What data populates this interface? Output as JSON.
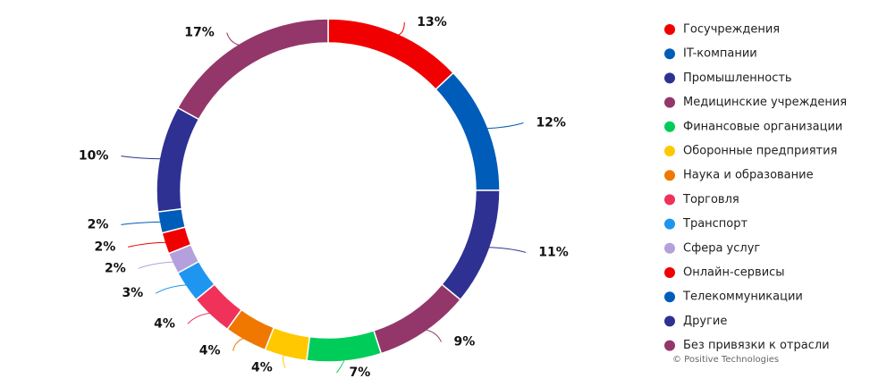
{
  "chart_data": {
    "type": "pie",
    "categories": [
      "Госучреждения",
      "IT-компании",
      "Промышленность",
      "Медицинские учреждения",
      "Финансовые организации",
      "Оборонные предприятия",
      "Наука и образование",
      "Торговля",
      "Транспорт",
      "Сфера услуг",
      "Онлайн-сервисы",
      "Телекоммуникации",
      "Другие",
      "Без привязки к отрасли"
    ],
    "values": [
      13,
      12,
      11,
      9,
      7,
      4,
      4,
      4,
      3,
      2,
      2,
      2,
      10,
      17
    ],
    "value_labels": [
      "13%",
      "12%",
      "11%",
      "9%",
      "7%",
      "4%",
      "4%",
      "4%",
      "3%",
      "2%",
      "2%",
      "2%",
      "10%",
      "17%"
    ],
    "colors": [
      "#f00000",
      "#005cb9",
      "#2e3192",
      "#93376a",
      "#00cc5a",
      "#ffc800",
      "#f07800",
      "#f0325a",
      "#1e96f0",
      "#b4a0dc",
      "#f00000",
      "#005cb9",
      "#2e3192",
      "#93376a"
    ],
    "legend": "right",
    "source": "© Positive Technologies"
  }
}
